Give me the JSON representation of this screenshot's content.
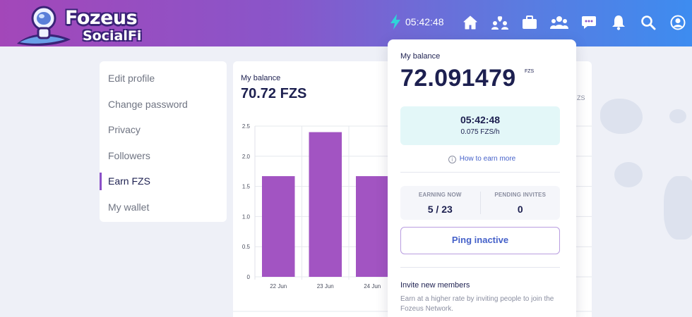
{
  "brand": {
    "line1": "Fozeus",
    "line2": "SocialFi"
  },
  "header": {
    "timer": "05:42:48"
  },
  "nav": [
    {
      "name": "home-icon"
    },
    {
      "name": "users-heart-icon"
    },
    {
      "name": "briefcase-icon"
    },
    {
      "name": "group-icon"
    },
    {
      "name": "chat-icon"
    },
    {
      "name": "bell-icon"
    },
    {
      "name": "search-icon"
    },
    {
      "name": "account-icon"
    }
  ],
  "sidebar": {
    "items": [
      {
        "label": "Edit profile"
      },
      {
        "label": "Change password"
      },
      {
        "label": "Privacy"
      },
      {
        "label": "Followers"
      },
      {
        "label": "Earn FZS",
        "active": true
      },
      {
        "label": "My wallet"
      }
    ]
  },
  "main": {
    "label": "My balance",
    "value": "70.72 FZS",
    "unit_peek": "ZS"
  },
  "chart_data": {
    "type": "bar",
    "categories": [
      "22 Jun",
      "23 Jun",
      "24 Jun"
    ],
    "values": [
      1.67,
      2.4,
      1.67
    ],
    "yticks": [
      "0",
      "0.5",
      "1.0",
      "1.5",
      "2.0",
      "2.5"
    ],
    "ylim": [
      0,
      2.5
    ],
    "bar_color": "#a254c2"
  },
  "popup": {
    "label": "My balance",
    "value": "72.091479",
    "unit": "FZS",
    "timer": "05:42:48",
    "rate": "0.075 FZS/h",
    "earn_more": "How to earn more",
    "earning_now_label": "EARNING NOW",
    "earning_now_value": "5 / 23",
    "pending_label": "PENDING INVITES",
    "pending_value": "0",
    "ping_button": "Ping inactive",
    "invite_title": "Invite new members",
    "invite_text": "Earn at a higher rate by inviting people to join the Fozeus Network."
  }
}
